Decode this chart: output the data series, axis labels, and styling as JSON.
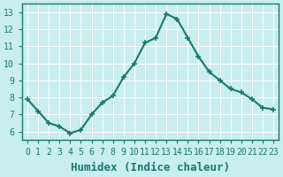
{
  "x": [
    0,
    1,
    2,
    3,
    4,
    5,
    6,
    7,
    8,
    9,
    10,
    11,
    12,
    13,
    14,
    15,
    16,
    17,
    18,
    19,
    20,
    21,
    22,
    23
  ],
  "y": [
    7.9,
    7.2,
    6.5,
    6.3,
    5.9,
    6.1,
    7.0,
    7.7,
    8.1,
    9.2,
    10.0,
    11.2,
    11.5,
    12.9,
    12.6,
    11.5,
    10.4,
    9.5,
    9.0,
    8.5,
    8.3,
    7.9,
    7.4,
    7.3
  ],
  "line_color": "#1a7a6a",
  "marker": "+",
  "markersize": 5,
  "bg_color": "#c8eeee",
  "grid_color": "#ffffff",
  "xlabel": "Humidex (Indice chaleur)",
  "xlim": [
    -0.5,
    23.5
  ],
  "ylim": [
    5.5,
    13.5
  ],
  "yticks": [
    6,
    7,
    8,
    9,
    10,
    11,
    12,
    13
  ],
  "xticks": [
    0,
    1,
    2,
    3,
    4,
    5,
    6,
    7,
    8,
    9,
    10,
    11,
    12,
    13,
    14,
    15,
    16,
    17,
    18,
    19,
    20,
    21,
    22,
    23
  ],
  "tick_color": "#1a7a6a",
  "label_color": "#1a7a6a",
  "tick_fontsize": 7,
  "xlabel_fontsize": 9,
  "linewidth": 1.5
}
